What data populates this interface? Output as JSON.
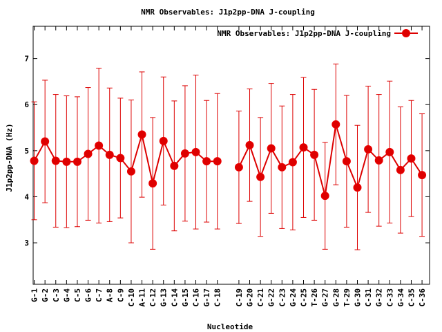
{
  "chart_data": {
    "type": "line",
    "title": "NMR Observables: J1p2pp-DNA J-coupling",
    "xlabel": "Nucleotide",
    "ylabel": "J1p2pp-DNA (Hz)",
    "ylim": [
      2.1,
      7.7
    ],
    "yticks": [
      3,
      4,
      5,
      6,
      7
    ],
    "grid": false,
    "legend_position": "top-right",
    "color": "#dd0000",
    "series": [
      {
        "name": "NMR Observables: J1p2pp-DNA J-coupling",
        "points": [
          {
            "x": 1,
            "label": "G-1",
            "y": 4.78,
            "err": 1.28
          },
          {
            "x": 2,
            "label": "G-2",
            "y": 5.2,
            "err": 1.33
          },
          {
            "x": 3,
            "label": "C-3",
            "y": 4.78,
            "err": 1.44
          },
          {
            "x": 4,
            "label": "G-4",
            "y": 4.76,
            "err": 1.43
          },
          {
            "x": 5,
            "label": "C-5",
            "y": 4.76,
            "err": 1.41
          },
          {
            "x": 6,
            "label": "G-6",
            "y": 4.93,
            "err": 1.44
          },
          {
            "x": 7,
            "label": "C-7",
            "y": 5.11,
            "err": 1.68
          },
          {
            "x": 8,
            "label": "A-8",
            "y": 4.91,
            "err": 1.45
          },
          {
            "x": 9,
            "label": "C-9",
            "y": 4.84,
            "err": 1.3
          },
          {
            "x": 10,
            "label": "C-10",
            "y": 4.55,
            "err": 1.55
          },
          {
            "x": 11,
            "label": "A-11",
            "y": 5.35,
            "err": 1.36
          },
          {
            "x": 12,
            "label": "C-12",
            "y": 4.29,
            "err": 1.43
          },
          {
            "x": 13,
            "label": "G-13",
            "y": 5.21,
            "err": 1.39
          },
          {
            "x": 14,
            "label": "C-14",
            "y": 4.67,
            "err": 1.41
          },
          {
            "x": 15,
            "label": "G-15",
            "y": 4.94,
            "err": 1.47
          },
          {
            "x": 16,
            "label": "C-16",
            "y": 4.97,
            "err": 1.67
          },
          {
            "x": 17,
            "label": "G-17",
            "y": 4.77,
            "err": 1.32
          },
          {
            "x": 18,
            "label": "C-18",
            "y": 4.77,
            "err": 1.47
          },
          {
            "x": 20,
            "label": "C-19",
            "y": 4.64,
            "err": 1.22
          },
          {
            "x": 21,
            "label": "G-20",
            "y": 5.12,
            "err": 1.22
          },
          {
            "x": 22,
            "label": "C-21",
            "y": 4.43,
            "err": 1.29
          },
          {
            "x": 23,
            "label": "G-22",
            "y": 5.05,
            "err": 1.41
          },
          {
            "x": 24,
            "label": "C-23",
            "y": 4.64,
            "err": 1.33
          },
          {
            "x": 25,
            "label": "G-24",
            "y": 4.75,
            "err": 1.47
          },
          {
            "x": 26,
            "label": "C-25",
            "y": 5.07,
            "err": 1.52
          },
          {
            "x": 27,
            "label": "T-26",
            "y": 4.91,
            "err": 1.42
          },
          {
            "x": 28,
            "label": "G-27",
            "y": 4.02,
            "err": 1.16
          },
          {
            "x": 29,
            "label": "G-28",
            "y": 5.57,
            "err": 1.31
          },
          {
            "x": 30,
            "label": "T-29",
            "y": 4.77,
            "err": 1.43
          },
          {
            "x": 31,
            "label": "G-30",
            "y": 4.2,
            "err": 1.35
          },
          {
            "x": 32,
            "label": "C-31",
            "y": 5.03,
            "err": 1.37
          },
          {
            "x": 33,
            "label": "G-32",
            "y": 4.79,
            "err": 1.43
          },
          {
            "x": 34,
            "label": "C-33",
            "y": 4.97,
            "err": 1.54
          },
          {
            "x": 35,
            "label": "G-34",
            "y": 4.58,
            "err": 1.37
          },
          {
            "x": 36,
            "label": "C-35",
            "y": 4.83,
            "err": 1.26
          },
          {
            "x": 37,
            "label": "C-36",
            "y": 4.47,
            "err": 1.33
          }
        ]
      }
    ]
  }
}
